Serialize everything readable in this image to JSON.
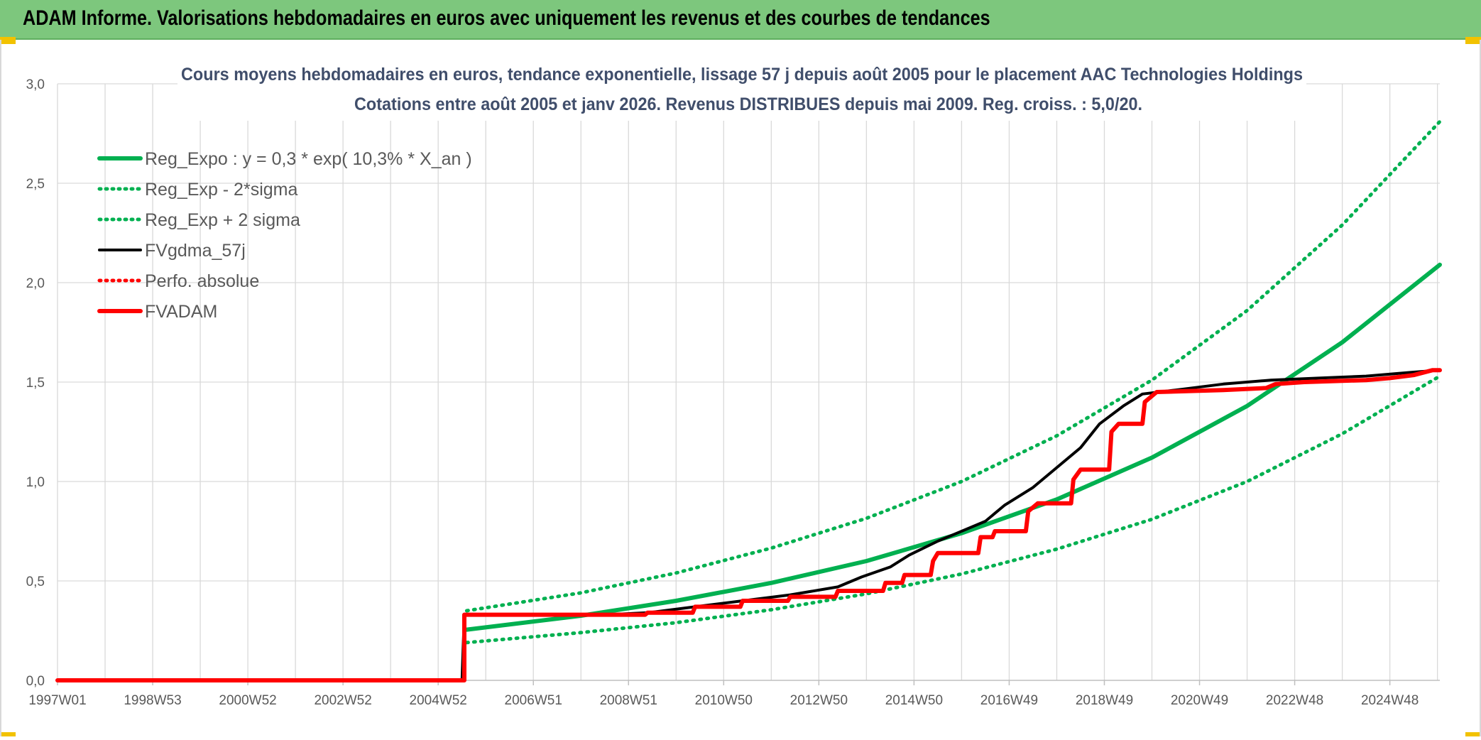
{
  "banner": {
    "title": "ADAM Informe. Valorisations hebdomadaires en euros avec uniquement les revenus et des courbes de tendances"
  },
  "chart_data": {
    "type": "line",
    "title": "Cours moyens hebdomadaires en euros, tendance exponentielle, lissage 57 j depuis août 2005 pour le placement AAC Technologies Holdings",
    "subtitle": "Cotations entre août 2005 et janv 2026. Revenus DISTRIBUES depuis mai 2009. Reg. croiss. : 5,0/20.",
    "x_tick_labels": [
      "1997W01",
      "1998W53",
      "2000W52",
      "2002W52",
      "2004W52",
      "2006W51",
      "2008W51",
      "2010W50",
      "2012W50",
      "2014W50",
      "2016W49",
      "2018W49",
      "2020W49",
      "2022W48",
      "2024W48"
    ],
    "x_tick_years": [
      1997.0,
      1999.0,
      2001.0,
      2003.0,
      2005.0,
      2007.0,
      2009.0,
      2011.0,
      2013.0,
      2015.0,
      2017.0,
      2019.0,
      2021.0,
      2023.0,
      2025.0
    ],
    "x_range": [
      1997.0,
      2026.05
    ],
    "ylim": [
      0,
      3.0
    ],
    "y_ticks": [
      "0,0",
      "0,5",
      "1,0",
      "1,5",
      "2,0",
      "2,5",
      "3,0"
    ],
    "y_tick_values": [
      0,
      0.5,
      1.0,
      1.5,
      2.0,
      2.5,
      3.0
    ],
    "grid": true,
    "legend_position": "top-left",
    "series": [
      {
        "name": "Reg_Expo : y = 0,3 * exp( 10,3% *  X_an )",
        "color": "#00b050",
        "style": "solid-thick",
        "points": [
          [
            2005.6,
            0.255
          ],
          [
            2008,
            0.325
          ],
          [
            2010,
            0.4
          ],
          [
            2012,
            0.49
          ],
          [
            2014,
            0.6
          ],
          [
            2016,
            0.74
          ],
          [
            2018,
            0.91
          ],
          [
            2020,
            1.12
          ],
          [
            2022,
            1.38
          ],
          [
            2024,
            1.7
          ],
          [
            2026.05,
            2.09
          ]
        ]
      },
      {
        "name": "Reg_Exp - 2*sigma",
        "color": "#00b050",
        "style": "dotted",
        "points": [
          [
            2005.6,
            0.19
          ],
          [
            2008,
            0.24
          ],
          [
            2010,
            0.29
          ],
          [
            2012,
            0.355
          ],
          [
            2014,
            0.435
          ],
          [
            2016,
            0.535
          ],
          [
            2018,
            0.66
          ],
          [
            2020,
            0.81
          ],
          [
            2022,
            1.0
          ],
          [
            2024,
            1.24
          ],
          [
            2026.05,
            1.53
          ]
        ]
      },
      {
        "name": "Reg_Exp + 2 sigma",
        "color": "#00b050",
        "style": "dotted",
        "points": [
          [
            2005.6,
            0.35
          ],
          [
            2008,
            0.44
          ],
          [
            2010,
            0.54
          ],
          [
            2012,
            0.665
          ],
          [
            2014,
            0.815
          ],
          [
            2016,
            1.0
          ],
          [
            2018,
            1.23
          ],
          [
            2020,
            1.51
          ],
          [
            2022,
            1.86
          ],
          [
            2024,
            2.29
          ],
          [
            2026.05,
            2.81
          ]
        ]
      },
      {
        "name": "FVgdma_57j",
        "color": "#000000",
        "style": "solid",
        "points": [
          [
            1997,
            0
          ],
          [
            2005.5,
            0
          ],
          [
            2005.55,
            0.33
          ],
          [
            2008.5,
            0.33
          ],
          [
            2009.4,
            0.34
          ],
          [
            2010.4,
            0.37
          ],
          [
            2011.4,
            0.4
          ],
          [
            2012.4,
            0.43
          ],
          [
            2013.4,
            0.47
          ],
          [
            2013.9,
            0.52
          ],
          [
            2014.5,
            0.57
          ],
          [
            2014.9,
            0.63
          ],
          [
            2015.5,
            0.7
          ],
          [
            2015.9,
            0.74
          ],
          [
            2016.5,
            0.8
          ],
          [
            2016.9,
            0.88
          ],
          [
            2017.5,
            0.97
          ],
          [
            2017.9,
            1.05
          ],
          [
            2018.5,
            1.17
          ],
          [
            2018.9,
            1.29
          ],
          [
            2019.4,
            1.38
          ],
          [
            2019.8,
            1.44
          ],
          [
            2020.5,
            1.46
          ],
          [
            2021.5,
            1.49
          ],
          [
            2022.5,
            1.51
          ],
          [
            2023.5,
            1.52
          ],
          [
            2024.5,
            1.53
          ],
          [
            2025.5,
            1.55
          ],
          [
            2026.05,
            1.56
          ]
        ]
      },
      {
        "name": "Perfo. absolue",
        "color": "#ff0000",
        "style": "dotted",
        "points": []
      },
      {
        "name": "FVADAM",
        "color": "#ff0000",
        "style": "solid-thick",
        "points": [
          [
            1997,
            0
          ],
          [
            2005.55,
            0
          ],
          [
            2005.55,
            0.33
          ],
          [
            2009.35,
            0.33
          ],
          [
            2009.4,
            0.34
          ],
          [
            2010.35,
            0.34
          ],
          [
            2010.4,
            0.37
          ],
          [
            2011.35,
            0.37
          ],
          [
            2011.4,
            0.4
          ],
          [
            2012.35,
            0.4
          ],
          [
            2012.4,
            0.42
          ],
          [
            2013.35,
            0.42
          ],
          [
            2013.4,
            0.45
          ],
          [
            2014.35,
            0.45
          ],
          [
            2014.4,
            0.49
          ],
          [
            2014.75,
            0.49
          ],
          [
            2014.8,
            0.53
          ],
          [
            2015.35,
            0.53
          ],
          [
            2015.4,
            0.6
          ],
          [
            2015.5,
            0.64
          ],
          [
            2016.35,
            0.64
          ],
          [
            2016.4,
            0.72
          ],
          [
            2016.65,
            0.72
          ],
          [
            2016.7,
            0.75
          ],
          [
            2017.35,
            0.75
          ],
          [
            2017.4,
            0.85
          ],
          [
            2017.6,
            0.89
          ],
          [
            2018.3,
            0.89
          ],
          [
            2018.35,
            1.01
          ],
          [
            2018.5,
            1.06
          ],
          [
            2019.1,
            1.06
          ],
          [
            2019.15,
            1.25
          ],
          [
            2019.3,
            1.29
          ],
          [
            2019.8,
            1.29
          ],
          [
            2019.85,
            1.4
          ],
          [
            2020.1,
            1.45
          ],
          [
            2021.5,
            1.46
          ],
          [
            2022.4,
            1.47
          ],
          [
            2022.6,
            1.49
          ],
          [
            2023.2,
            1.5
          ],
          [
            2024.5,
            1.51
          ],
          [
            2025.0,
            1.52
          ],
          [
            2025.5,
            1.535
          ],
          [
            2025.9,
            1.56
          ],
          [
            2026.05,
            1.56
          ]
        ]
      }
    ]
  }
}
